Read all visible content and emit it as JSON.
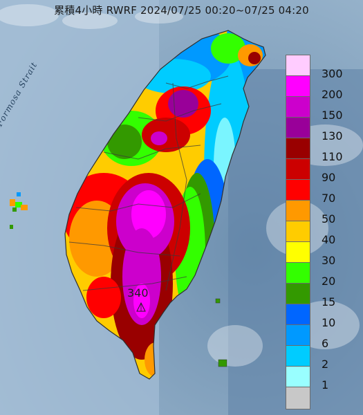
{
  "title": "累積4小時 RWRF 2024/07/25 00:20~07/25 04:20",
  "strait_label": "Formosa Strait",
  "peak_label": "340",
  "legend": {
    "levels": [
      {
        "label": "300",
        "color": "#ffccff"
      },
      {
        "label": "200",
        "color": "#ff00ff"
      },
      {
        "label": "150",
        "color": "#cc00cc"
      },
      {
        "label": "130",
        "color": "#990099"
      },
      {
        "label": "110",
        "color": "#990000"
      },
      {
        "label": "90",
        "color": "#cc0000"
      },
      {
        "label": "70",
        "color": "#ff0000"
      },
      {
        "label": "50",
        "color": "#ff9900"
      },
      {
        "label": "40",
        "color": "#ffcc00"
      },
      {
        "label": "30",
        "color": "#ffff00"
      },
      {
        "label": "20",
        "color": "#33ff00"
      },
      {
        "label": "15",
        "color": "#339900"
      },
      {
        "label": "10",
        "color": "#0066ff"
      },
      {
        "label": "6",
        "color": "#0099ff"
      },
      {
        "label": "2",
        "color": "#00ccff"
      },
      {
        "label": "1",
        "color": "#99ffff"
      },
      {
        "label": "",
        "color": "#c8c8c8"
      }
    ]
  }
}
